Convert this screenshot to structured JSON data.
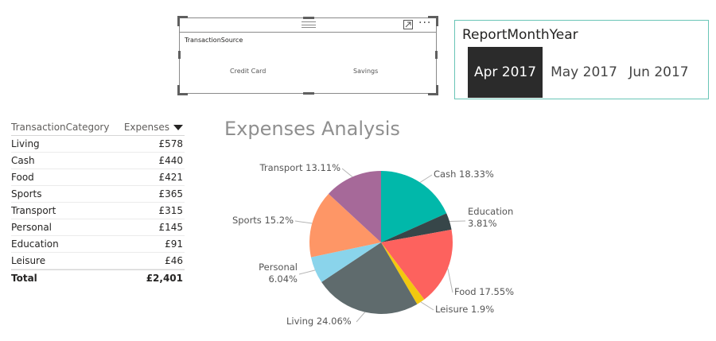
{
  "source_slicer": {
    "title": "TransactionSource",
    "options": [
      "Credit Card",
      "Savings"
    ]
  },
  "month_slicer": {
    "title": "ReportMonthYear",
    "options": [
      "Apr 2017",
      "May 2017",
      "Jun 2017"
    ],
    "selected": "Apr 2017"
  },
  "table": {
    "headers": [
      "TransactionCategory",
      "Expenses"
    ],
    "rows": [
      {
        "category": "Living",
        "expenses": "£578"
      },
      {
        "category": "Cash",
        "expenses": "£440"
      },
      {
        "category": "Food",
        "expenses": "£421"
      },
      {
        "category": "Sports",
        "expenses": "£365"
      },
      {
        "category": "Transport",
        "expenses": "£315"
      },
      {
        "category": "Personal",
        "expenses": "£145"
      },
      {
        "category": "Education",
        "expenses": "£91"
      },
      {
        "category": "Leisure",
        "expenses": "£46"
      }
    ],
    "total_label": "Total",
    "total_value": "£2,401"
  },
  "chart_data": {
    "type": "pie",
    "title": "Expenses Analysis",
    "slices": [
      {
        "name": "Cash",
        "percent": 18.33,
        "label": "Cash 18.33%",
        "color": "#01B8AA"
      },
      {
        "name": "Education",
        "percent": 3.81,
        "label": "Education 3.81%",
        "color": "#374649"
      },
      {
        "name": "Food",
        "percent": 17.55,
        "label": "Food 17.55%",
        "color": "#FD625E"
      },
      {
        "name": "Leisure",
        "percent": 1.9,
        "label": "Leisure 1.9%",
        "color": "#F2C80F"
      },
      {
        "name": "Living",
        "percent": 24.06,
        "label": "Living 24.06%",
        "color": "#5F6B6D"
      },
      {
        "name": "Personal",
        "percent": 6.04,
        "label": "Personal 6.04%",
        "color": "#8AD4EB"
      },
      {
        "name": "Sports",
        "percent": 15.2,
        "label": "Sports 15.2%",
        "color": "#FE9666"
      },
      {
        "name": "Transport",
        "percent": 13.11,
        "label": "Transport 13.11%",
        "color": "#A66999"
      }
    ]
  }
}
